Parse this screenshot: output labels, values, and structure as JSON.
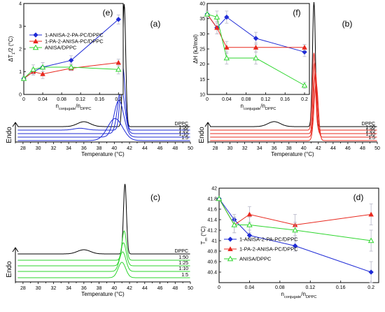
{
  "chart_data": [
    {
      "id": "a",
      "type": "line",
      "panel_label": "(a)",
      "xlabel": "Temperature (°C)",
      "ylabel": "Endo",
      "xlim": [
        27,
        50
      ],
      "xticks": [
        28,
        30,
        32,
        34,
        36,
        38,
        40,
        42,
        44,
        46,
        48,
        50
      ],
      "color": "#1f2bd6",
      "series": [
        {
          "name": "DPPC",
          "color": "#000000",
          "transition": 41.3,
          "peak": 1.0,
          "width": 0.28,
          "pre_t": 36.0,
          "pre_h": 0.04
        },
        {
          "name": "1:50",
          "color": "#1f2bd6",
          "transition": 41.1,
          "peak": 0.52,
          "width": 0.45,
          "pre_t": 35.5,
          "pre_h": 0.015
        },
        {
          "name": "1:25",
          "color": "#1f2bd6",
          "transition": 40.9,
          "peak": 0.38,
          "width": 0.65,
          "pre_t": 0,
          "pre_h": 0
        },
        {
          "name": "1:10",
          "color": "#1f2bd6",
          "transition": 40.6,
          "peak": 0.3,
          "width": 0.9,
          "pre_t": 0,
          "pre_h": 0
        },
        {
          "name": "1:5",
          "color": "#1f2bd6",
          "transition": 40.1,
          "peak": 0.18,
          "width": 1.4,
          "pre_t": 0,
          "pre_h": 0
        }
      ]
    },
    {
      "id": "b",
      "type": "line",
      "panel_label": "(b)",
      "xlabel": "Temperature (°C)",
      "ylabel": "Endo",
      "xlim": [
        27,
        50
      ],
      "xticks": [
        28,
        30,
        32,
        34,
        36,
        38,
        40,
        42,
        44,
        46,
        48,
        50
      ],
      "color": "#e8281e",
      "series": [
        {
          "name": "DPPC",
          "color": "#000000",
          "transition": 41.4,
          "peak": 1.0,
          "width": 0.28,
          "pre_t": 36.0,
          "pre_h": 0.04
        },
        {
          "name": "1:50",
          "color": "#e8281e",
          "transition": 41.4,
          "peak": 0.62,
          "width": 0.3,
          "pre_t": 0,
          "pre_h": 0
        },
        {
          "name": "1:25",
          "color": "#e8281e",
          "transition": 41.5,
          "peak": 0.57,
          "width": 0.3,
          "pre_t": 0,
          "pre_h": 0
        },
        {
          "name": "1:10",
          "color": "#e8281e",
          "transition": 41.6,
          "peak": 0.52,
          "width": 0.35,
          "pre_t": 0,
          "pre_h": 0
        },
        {
          "name": "1:5",
          "color": "#e8281e",
          "transition": 41.7,
          "peak": 0.46,
          "width": 0.4,
          "pre_t": 0,
          "pre_h": 0
        }
      ]
    },
    {
      "id": "c",
      "type": "line",
      "panel_label": "(c)",
      "xlabel": "Temperature (°C)",
      "ylabel": "Endo",
      "xlim": [
        27,
        50
      ],
      "xticks": [
        28,
        30,
        32,
        34,
        36,
        38,
        40,
        42,
        44,
        46,
        48,
        50
      ],
      "color": "#2ed62e",
      "series": [
        {
          "name": "DPPC",
          "color": "#000000",
          "transition": 41.4,
          "peak": 1.0,
          "width": 0.28,
          "pre_t": 36.0,
          "pre_h": 0.06
        },
        {
          "name": "1:50",
          "color": "#2ed62e",
          "transition": 41.3,
          "peak": 0.42,
          "width": 0.4,
          "pre_t": 0,
          "pre_h": 0
        },
        {
          "name": "1:25",
          "color": "#2ed62e",
          "transition": 41.2,
          "peak": 0.33,
          "width": 0.5,
          "pre_t": 0,
          "pre_h": 0
        },
        {
          "name": "1:10",
          "color": "#2ed62e",
          "transition": 41.1,
          "peak": 0.28,
          "width": 0.6,
          "pre_t": 0,
          "pre_h": 0
        },
        {
          "name": "1:5",
          "color": "#2ed62e",
          "transition": 41.0,
          "peak": 0.22,
          "width": 0.7,
          "pre_t": 0,
          "pre_h": 0
        }
      ]
    },
    {
      "id": "d",
      "type": "scatter",
      "panel_label": "(d)",
      "xlabel": "n_conjugate/n_DPPC",
      "ylabel": "T_m (°C)",
      "xlim": [
        0,
        0.21
      ],
      "ylim": [
        40.2,
        42.0
      ],
      "xticks": [
        0,
        0.04,
        0.08,
        0.12,
        0.16,
        0.2
      ],
      "xtick_labels": [
        "0",
        "0.04",
        "0.08",
        "0.12",
        "0.16",
        "0.2"
      ],
      "yticks": [
        40.4,
        40.6,
        40.8,
        41.0,
        41.2,
        41.4,
        41.6,
        41.8,
        42.0
      ],
      "ytick_labels": [
        "40.4",
        "40.6",
        "40.8",
        "41",
        "41.2",
        "41.4",
        "41.6",
        "41.8",
        "42"
      ],
      "legend_position": "bottom-left",
      "series": [
        {
          "name": "1-ANISA-2-PA-PC/DPPC",
          "color": "#1f2bd6",
          "marker": "diamond",
          "x": [
            0,
            0.02,
            0.04,
            0.1,
            0.2
          ],
          "y": [
            41.8,
            41.4,
            41.1,
            40.9,
            40.4
          ],
          "err": [
            0,
            0.1,
            0.1,
            0.1,
            0.2
          ]
        },
        {
          "name": "1-PA-2-ANISA-PC/DPPC",
          "color": "#e8281e",
          "marker": "triangle",
          "x": [
            0,
            0.02,
            0.04,
            0.1,
            0.2
          ],
          "y": [
            41.8,
            41.3,
            41.5,
            41.3,
            41.5
          ],
          "err": [
            0,
            0.15,
            0.15,
            0.2,
            0.2
          ]
        },
        {
          "name": "ANISA/DPPC",
          "color": "#2ed62e",
          "marker": "triangle-open",
          "x": [
            0,
            0.02,
            0.04,
            0.1,
            0.2
          ],
          "y": [
            41.8,
            41.3,
            41.3,
            41.2,
            41.0
          ],
          "err": [
            0,
            0.15,
            0.15,
            0.15,
            0.2
          ]
        }
      ]
    },
    {
      "id": "e",
      "type": "scatter",
      "panel_label": "(e)",
      "xlabel": "n_conjugate/n_DPPC",
      "ylabel": "ΔT_1/2 (°C)",
      "xlim": [
        0,
        0.21
      ],
      "ylim": [
        0,
        4
      ],
      "xticks": [
        0,
        0.04,
        0.08,
        0.12,
        0.16,
        0.2
      ],
      "xtick_labels": [
        "0",
        "0.04",
        "0.08",
        "0.12",
        "0.16",
        "0.2"
      ],
      "yticks": [
        0,
        1,
        2,
        3,
        4
      ],
      "ytick_labels": [
        "0",
        "1",
        "2",
        "3",
        "4"
      ],
      "legend_position": "top-left",
      "series": [
        {
          "name": "1-ANISA-2-PA-PC/DPPC",
          "color": "#1f2bd6",
          "marker": "diamond",
          "x": [
            0,
            0.02,
            0.04,
            0.1,
            0.2
          ],
          "y": [
            0.7,
            1.0,
            1.2,
            1.5,
            3.3
          ],
          "err": [
            0.1,
            0.1,
            0.2,
            0.2,
            0.2
          ]
        },
        {
          "name": "1-PA-2-ANISA-PC/DPPC",
          "color": "#e8281e",
          "marker": "triangle",
          "x": [
            0,
            0.02,
            0.04,
            0.1,
            0.2
          ],
          "y": [
            0.7,
            1.0,
            0.9,
            1.15,
            1.4
          ],
          "err": [
            0.1,
            0.15,
            0.2,
            0.1,
            0.15
          ]
        },
        {
          "name": "ANISA/DPPC",
          "color": "#2ed62e",
          "marker": "triangle-open",
          "x": [
            0,
            0.02,
            0.04,
            0.1,
            0.2
          ],
          "y": [
            0.7,
            1.1,
            1.2,
            1.2,
            1.1
          ],
          "err": [
            0.1,
            0.2,
            0.2,
            0.15,
            0.2
          ]
        }
      ]
    },
    {
      "id": "f",
      "type": "scatter",
      "panel_label": "(f)",
      "xlabel": "n_conjugate/n_DPPC",
      "ylabel": "ΔH (kJ/mol)",
      "xlim": [
        0,
        0.21
      ],
      "ylim": [
        10,
        40
      ],
      "xticks": [
        0,
        0.04,
        0.08,
        0.12,
        0.16,
        0.2
      ],
      "xtick_labels": [
        "0",
        "0.04",
        "0.08",
        "0.12",
        "0.16",
        "0.2"
      ],
      "yticks": [
        10,
        15,
        20,
        25,
        30,
        35,
        40
      ],
      "ytick_labels": [
        "10",
        "15",
        "20",
        "25",
        "30",
        "35",
        "40"
      ],
      "legend_position": "none",
      "series": [
        {
          "name": "1-ANISA-2-PA-PC/DPPC",
          "color": "#1f2bd6",
          "marker": "diamond",
          "x": [
            0,
            0.02,
            0.04,
            0.1,
            0.2
          ],
          "y": [
            36.5,
            32,
            35.5,
            28.5,
            24
          ],
          "err": [
            1,
            2,
            2,
            2,
            1.5
          ]
        },
        {
          "name": "1-PA-2-ANISA-PC/DPPC",
          "color": "#e8281e",
          "marker": "triangle",
          "x": [
            0,
            0.02,
            0.04,
            0.1,
            0.2
          ],
          "y": [
            36.5,
            32,
            25.5,
            25.5,
            25.5
          ],
          "err": [
            1,
            2,
            2,
            1.5,
            1
          ]
        },
        {
          "name": "ANISA/DPPC",
          "color": "#2ed62e",
          "marker": "triangle-open",
          "x": [
            0,
            0.02,
            0.04,
            0.1,
            0.2
          ],
          "y": [
            36.5,
            35.5,
            22,
            22,
            13
          ],
          "err": [
            1,
            2,
            2,
            2,
            1
          ]
        }
      ]
    }
  ]
}
